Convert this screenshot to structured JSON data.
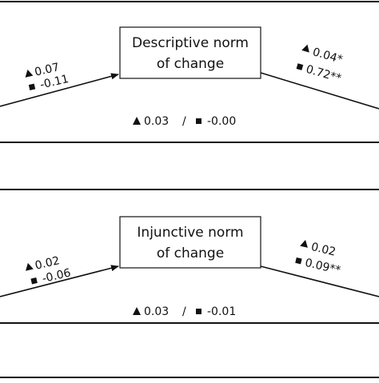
{
  "panels": [
    {
      "mediator": {
        "line1": "Descriptive norm",
        "line2": "of change"
      },
      "a_path": {
        "tri": "0.07",
        "sq": "-0.11"
      },
      "b_path": {
        "tri": "0.04*",
        "sq": "0.72**"
      },
      "direct": {
        "tri": "0.03",
        "sep": "/",
        "sq": "-0.00"
      }
    },
    {
      "mediator": {
        "line1": "Injunctive norm",
        "line2": "of change"
      },
      "a_path": {
        "tri": "0.02",
        "sq": "-0.06"
      },
      "b_path": {
        "tri": "0.02",
        "sq": "0.09**"
      },
      "direct": {
        "tri": "0.03",
        "sep": "/",
        "sq": "-0.01"
      }
    }
  ],
  "colors": {
    "ink": "#111111",
    "background": "#ffffff"
  },
  "markers": {
    "triangle": "triangle-marker-icon",
    "square": "square-marker-icon"
  }
}
